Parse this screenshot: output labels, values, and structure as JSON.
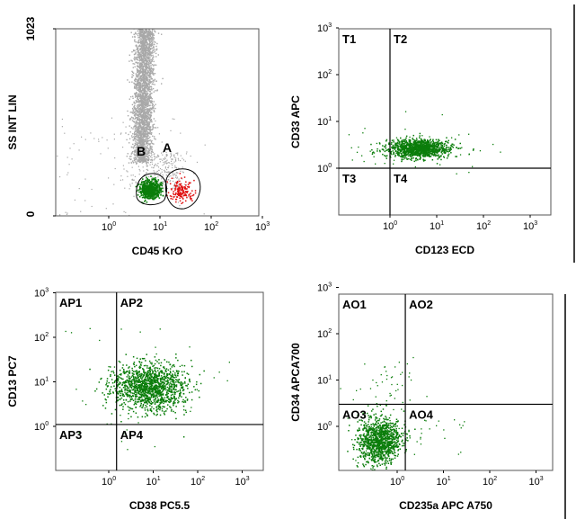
{
  "chart_data": [
    {
      "type": "scatter",
      "xlabel": "CD45 KrO",
      "ylabel": "SS INT LIN",
      "xscale": "log",
      "xlim": [
        0.1,
        1000
      ],
      "ylim": [
        0,
        1023
      ],
      "x_ticks": [
        {
          "base": "10",
          "exp": "0"
        },
        {
          "base": "10",
          "exp": "1"
        },
        {
          "base": "10",
          "exp": "2"
        },
        {
          "base": "10",
          "exp": "3"
        }
      ],
      "y_ticks": [
        "0",
        "1023"
      ],
      "gates": [
        {
          "label": "B",
          "color": "#0a7d0a"
        },
        {
          "label": "A",
          "color": "#e01010"
        }
      ],
      "populations": [
        {
          "color": "#a8a8a8",
          "x_range": [
            4,
            11
          ],
          "y_range": [
            300,
            1023
          ]
        },
        {
          "color": "#0a7d0a",
          "x_center": 7,
          "y_center": 150,
          "gate": "B"
        },
        {
          "color": "#e01010",
          "x_center": 18,
          "y_center": 140,
          "gate": "A"
        }
      ]
    },
    {
      "type": "scatter",
      "xlabel": "CD123 ECD",
      "ylabel": "CD33 APC",
      "xscale": "log",
      "yscale": "log",
      "xlim": [
        0.07,
        1000
      ],
      "ylim": [
        0.07,
        1000
      ],
      "x_ticks": [
        {
          "base": "10",
          "exp": "0"
        },
        {
          "base": "10",
          "exp": "1"
        },
        {
          "base": "10",
          "exp": "2"
        },
        {
          "base": "10",
          "exp": "3"
        }
      ],
      "y_ticks": [
        {
          "base": "10",
          "exp": "0"
        },
        {
          "base": "10",
          "exp": "1"
        },
        {
          "base": "10",
          "exp": "2"
        },
        {
          "base": "10",
          "exp": "3"
        }
      ],
      "quadrant_x": 1,
      "quadrant_y": 1,
      "quadrants": [
        "T1",
        "T2",
        "T3",
        "T4"
      ],
      "populations": [
        {
          "color": "#0a7d0a",
          "x_center": 4,
          "y_center": 2.7
        }
      ]
    },
    {
      "type": "scatter",
      "xlabel": "CD38 PC5.5",
      "ylabel": "CD13 PC7",
      "xscale": "log",
      "yscale": "log",
      "xlim": [
        0.07,
        1000
      ],
      "ylim": [
        0.07,
        1000
      ],
      "x_ticks": [
        {
          "base": "10",
          "exp": "0"
        },
        {
          "base": "10",
          "exp": "1"
        },
        {
          "base": "10",
          "exp": "2"
        },
        {
          "base": "10",
          "exp": "3"
        }
      ],
      "y_ticks": [
        {
          "base": "10",
          "exp": "0"
        },
        {
          "base": "10",
          "exp": "1"
        },
        {
          "base": "10",
          "exp": "2"
        },
        {
          "base": "10",
          "exp": "3"
        }
      ],
      "quadrant_x": 1.5,
      "quadrant_y": 1.1,
      "quadrants": [
        "AP1",
        "AP2",
        "AP3",
        "AP4"
      ],
      "populations": [
        {
          "color": "#0a7d0a",
          "x_center": 8,
          "y_center": 8
        }
      ]
    },
    {
      "type": "scatter",
      "xlabel": "CD235a APC A750",
      "ylabel": "CD34 APCA700",
      "xscale": "log",
      "yscale": "log",
      "xlim": [
        0.07,
        1000
      ],
      "ylim": [
        0.07,
        1000
      ],
      "x_ticks": [
        {
          "base": "10",
          "exp": "0"
        },
        {
          "base": "10",
          "exp": "1"
        },
        {
          "base": "10",
          "exp": "2"
        },
        {
          "base": "10",
          "exp": "3"
        }
      ],
      "y_ticks": [
        {
          "base": "10",
          "exp": "0"
        },
        {
          "base": "10",
          "exp": "1"
        },
        {
          "base": "10",
          "exp": "2"
        },
        {
          "base": "10",
          "exp": "3"
        }
      ],
      "quadrant_x": 1.5,
      "quadrant_y": 3,
      "quadrants": [
        "AO1",
        "AO2",
        "AO3",
        "AO4"
      ],
      "populations": [
        {
          "color": "#0a7d0a",
          "x_center": 0.4,
          "y_center": 0.5
        }
      ]
    }
  ]
}
